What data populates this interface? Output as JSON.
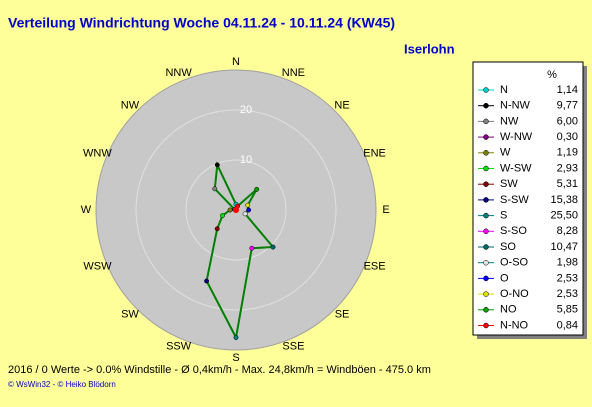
{
  "chart_data": {
    "type": "radar",
    "title": "Verteilung Windrichtung   Woche 04.11.24 - 10.11.24 (KW45)",
    "subtitle": "Iserlohn",
    "angle_labels": [
      "N",
      "NNE",
      "NE",
      "ENE",
      "E",
      "ESE",
      "SE",
      "SSE",
      "S",
      "SSW",
      "SW",
      "WSW",
      "W",
      "WNW",
      "NW",
      "NNW"
    ],
    "categories": [
      "N",
      "N-NW",
      "NW",
      "W-NW",
      "W",
      "W-SW",
      "SW",
      "S-SW",
      "S",
      "S-SO",
      "SO",
      "O-SO",
      "O",
      "O-NO",
      "NO",
      "N-NO"
    ],
    "series": [
      {
        "name": "%",
        "color": "#008000",
        "point_colors": [
          "#00cccc",
          "#000000",
          "#808080",
          "#800080",
          "#808000",
          "#00e000",
          "#800000",
          "#000080",
          "#008080",
          "#ff00ff",
          "#006666",
          "#e0e0e0",
          "#0000ff",
          "#e0e000",
          "#00a000",
          "#ff0000"
        ],
        "values": [
          1.14,
          9.77,
          6.0,
          0.3,
          1.19,
          2.93,
          5.31,
          15.38,
          25.5,
          8.28,
          10.47,
          1.98,
          2.53,
          2.53,
          5.85,
          0.84
        ],
        "value_labels": [
          "1,14",
          "9,77",
          "6,00",
          "0,30",
          "1,19",
          "2,93",
          "5,31",
          "15,38",
          "25,50",
          "8,28",
          "10,47",
          "1,98",
          "2,53",
          "2,53",
          "5,85",
          "0,84"
        ]
      }
    ],
    "ylim": [
      0,
      28
    ],
    "yticks": [
      10,
      20
    ],
    "grid": true,
    "footer": "2016 / 0 Werte  -> 0.0% Windstille   -   Ø 0,4km/h  -  Max. 24,8km/h = Windböen  -  475.0 km",
    "credit": "© WsWin32  -  © Heiko Blödorn"
  }
}
